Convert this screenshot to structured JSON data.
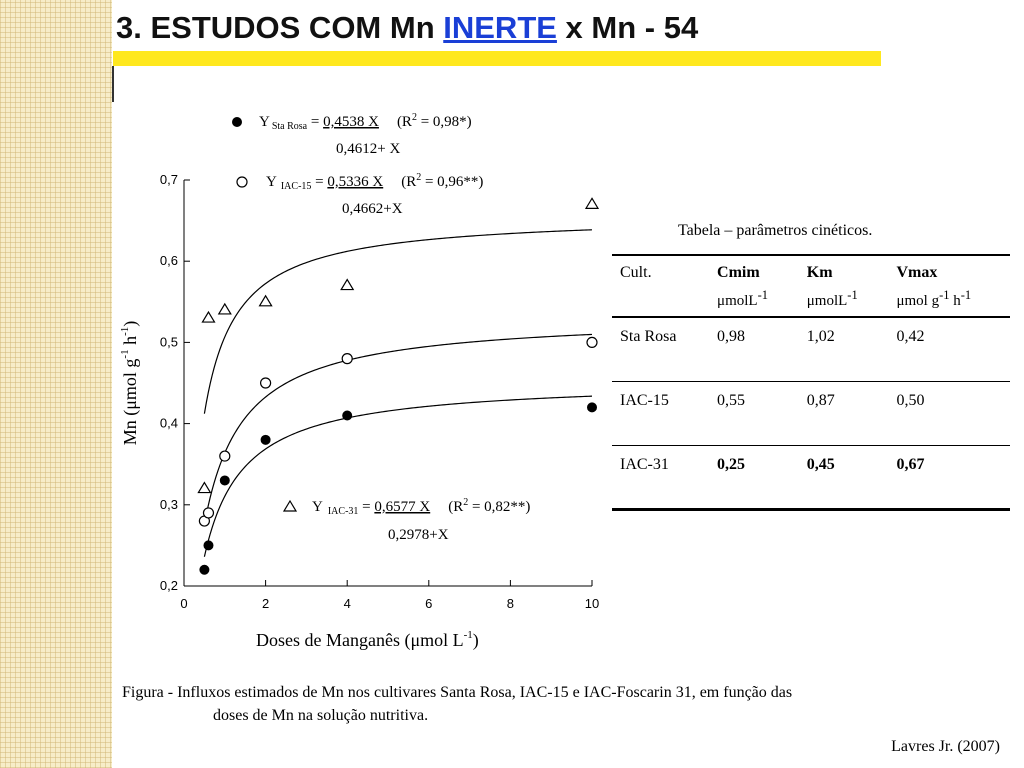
{
  "slide": {
    "title_prefix": "3. ESTUDOS COM Mn ",
    "title_accent": "INERTE",
    "title_suffix": " x Mn - 54",
    "colors": {
      "title_accent": "#1a3fd6",
      "title_bar": "#ffe81e",
      "left_strip": "#f7edc8"
    }
  },
  "chart_data": {
    "type": "scatter",
    "xlabel_prefix": "Doses de Manganês (",
    "xlabel_mu": "μ",
    "xlabel_main": "mol L",
    "xlabel_sup": "-1",
    "xlabel_close": ")",
    "ylabel_prefix": "Mn (",
    "ylabel_mu": "μ",
    "ylabel_main": "mol g",
    "ylabel_sup1": "-1",
    "ylabel_h": " h",
    "ylabel_sup2": "-1",
    "ylabel_close": ")",
    "xlim": [
      0,
      10
    ],
    "ylim": [
      0.2,
      0.7
    ],
    "x_ticks": [
      0,
      2,
      4,
      6,
      8,
      10
    ],
    "x_tick_labels": [
      "0",
      "2",
      "4",
      "6",
      "8",
      "10"
    ],
    "y_ticks": [
      0.2,
      0.3,
      0.4,
      0.5,
      0.6,
      0.7
    ],
    "y_tick_labels": [
      "0,2",
      "0,3",
      "0,4",
      "0,5",
      "0,6",
      "0,7"
    ],
    "series": [
      {
        "marker": "filled-circle",
        "x": [
          0.5,
          0.6,
          1,
          2,
          4,
          10
        ],
        "y": [
          0.22,
          0.25,
          0.33,
          0.38,
          0.41,
          0.42
        ],
        "fit": {
          "vmax": 0.4538,
          "km": 0.4612,
          "c": 0.0,
          "x_start": 0.5
        },
        "eq": {
          "label": "Y",
          "sub": "Sta Rosa",
          "eq": " = ",
          "num": "0,4538 X",
          "r_open": "(R",
          "r_sup": "2",
          "r_close": " = 0,98*)",
          "den": "0,4612+ X"
        }
      },
      {
        "marker": "open-circle",
        "x": [
          0.5,
          0.6,
          1,
          2,
          4,
          10
        ],
        "y": [
          0.28,
          0.29,
          0.36,
          0.45,
          0.48,
          0.5
        ],
        "fit": {
          "vmax": 0.5336,
          "km": 0.4662,
          "c": 0.0,
          "x_start": 0.5
        },
        "eq": {
          "label": "Y",
          "sub": "IAC-15",
          "eq": " = ",
          "num": "0,5336 X",
          "r_open": "(R",
          "r_sup": "2",
          "r_close": " = 0,96**)",
          "den": "0,4662+X"
        }
      },
      {
        "marker": "open-triangle",
        "x": [
          0.5,
          0.6,
          1,
          2,
          4,
          10
        ],
        "y": [
          0.32,
          0.53,
          0.54,
          0.55,
          0.57,
          0.67
        ],
        "fit": {
          "vmax": 0.6577,
          "km": 0.2978,
          "c": 0.0,
          "x_start": 0.5
        },
        "eq": {
          "label": "Y",
          "sub": "IAC-31",
          "eq": " = ",
          "num": "0,6577 X",
          "r_open": "(R",
          "r_sup": "2",
          "r_close": " = 0,82**)",
          "den": "0,2978+X"
        }
      }
    ]
  },
  "table": {
    "caption": "Tabela – parâmetros cinéticos.",
    "headers": [
      {
        "label": "Cult.",
        "unit": ""
      },
      {
        "label": "Cmim",
        "unit_mu": "μ",
        "unit": "molL",
        "unit_sup": "-1"
      },
      {
        "label": "Km",
        "unit_mu": "μ",
        "unit": "molL",
        "unit_sup": "-1"
      },
      {
        "label": "Vmax",
        "unit_mu": "μ",
        "unit": "mol g",
        "unit_sup": "-1",
        "unit2": " h",
        "unit_sup2": "-1"
      }
    ],
    "rows": [
      [
        "Sta Rosa",
        "0,98",
        "1,02",
        "0,42"
      ],
      [
        "IAC-15",
        "0,55",
        "0,87",
        "0,50"
      ],
      [
        "IAC-31",
        "0,25",
        "0,45",
        "0,67"
      ]
    ]
  },
  "figure_caption": {
    "line1": "Figura - Influxos estimados de Mn nos cultivares Santa Rosa, IAC-15 e IAC-Foscarin 31, em função das",
    "line2": "doses de Mn na solução nutritiva."
  },
  "credit": "Lavres Jr. (2007)"
}
